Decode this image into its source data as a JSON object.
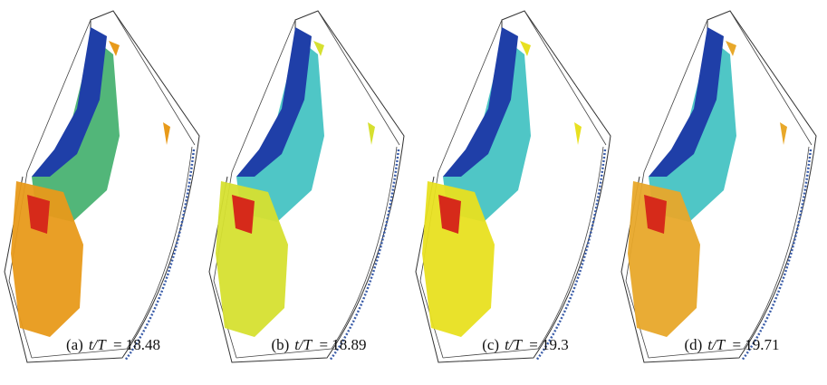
{
  "panels": [
    {
      "tag": "(a)",
      "quantity": "t/T",
      "value": "= 18.48"
    },
    {
      "tag": "(b)",
      "quantity": "t/T",
      "value": "= 18.89"
    },
    {
      "tag": "(c)",
      "quantity": "t/T",
      "value": "= 19.3"
    },
    {
      "tag": "(d)",
      "quantity": "t/T",
      "value": "= 19.71"
    }
  ]
}
